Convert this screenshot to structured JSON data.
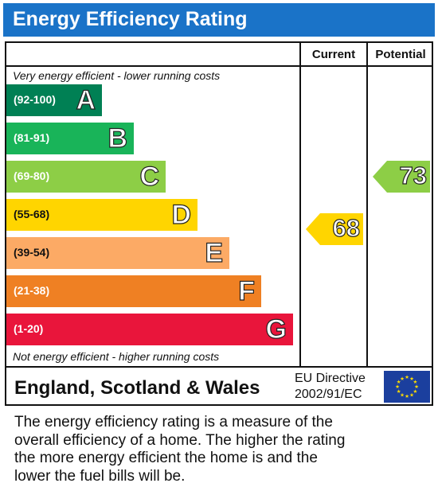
{
  "title": "Energy Efficiency Rating",
  "columns": {
    "current": "Current",
    "potential": "Potential"
  },
  "notes": {
    "top": "Very energy efficient - lower running costs",
    "bottom": "Not energy efficient - higher running costs"
  },
  "footer": {
    "region": "England, Scotland & Wales",
    "directive_line1": "EU Directive",
    "directive_line2": "2002/91/EC"
  },
  "description_lines": [
    "The energy efficiency rating is a measure of the",
    "overall efficiency of a home. The higher the rating",
    "the more energy efficient the home is and the",
    "lower the fuel bills will be."
  ],
  "chart_data": {
    "type": "bar",
    "title": "Energy Efficiency Rating",
    "bands": [
      {
        "letter": "A",
        "range": "(92-100)",
        "color": "#008054"
      },
      {
        "letter": "B",
        "range": "(81-91)",
        "color": "#19b459"
      },
      {
        "letter": "C",
        "range": "(69-80)",
        "color": "#8dce46"
      },
      {
        "letter": "D",
        "range": "(55-68)",
        "color": "#ffd500"
      },
      {
        "letter": "E",
        "range": "(39-54)",
        "color": "#fcaa65"
      },
      {
        "letter": "F",
        "range": "(21-38)",
        "color": "#ef8023"
      },
      {
        "letter": "G",
        "range": "(1-20)",
        "color": "#e9153b"
      }
    ],
    "series": [
      {
        "name": "Current",
        "value": 68,
        "band": "D",
        "color": "#ffd500"
      },
      {
        "name": "Potential",
        "value": 73,
        "band": "C",
        "color": "#8dce46"
      }
    ]
  }
}
